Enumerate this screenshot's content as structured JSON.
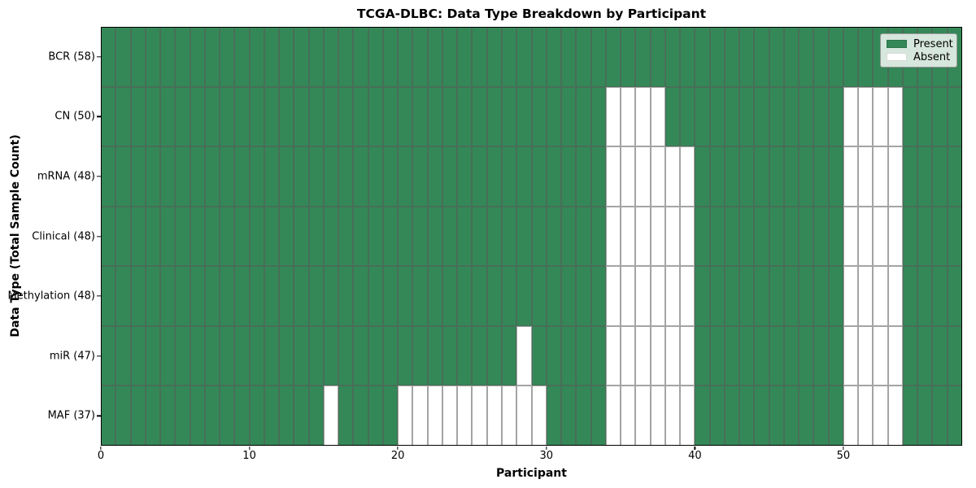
{
  "title": "TCGA-DLBC: Data Type Breakdown by Participant",
  "axes": {
    "xlabel": "Participant",
    "ylabel": "Data Type (Total Sample Count)"
  },
  "legend": {
    "items": [
      {
        "label": "Present",
        "color": "#348857"
      },
      {
        "label": "Absent",
        "color": "#ffffff"
      }
    ]
  },
  "chart_data": {
    "type": "heatmap",
    "title": "TCGA-DLBC: Data Type Breakdown by Participant",
    "xlabel": "Participant",
    "ylabel": "Data Type (Total Sample Count)",
    "n_participants": 58,
    "x_range": [
      0,
      58
    ],
    "x_ticks": [
      0,
      10,
      20,
      30,
      40,
      50
    ],
    "grid": "cell-mesh",
    "legend_position": "upper-right",
    "legend_entries": [
      "Present",
      "Absent"
    ],
    "colors": {
      "present": "#348857",
      "absent": "#ffffff",
      "cell_edge": "gray"
    },
    "rows": [
      {
        "label": "BCR (58)",
        "total_samples": 58,
        "absent_participants": []
      },
      {
        "label": "CN (50)",
        "total_samples": 50,
        "absent_participants": [
          34,
          35,
          36,
          37,
          50,
          51,
          52,
          53
        ]
      },
      {
        "label": "mRNA (48)",
        "total_samples": 48,
        "absent_participants": [
          34,
          35,
          36,
          37,
          38,
          39,
          50,
          51,
          52,
          53
        ]
      },
      {
        "label": "Clinical (48)",
        "total_samples": 48,
        "absent_participants": [
          34,
          35,
          36,
          37,
          38,
          39,
          50,
          51,
          52,
          53
        ]
      },
      {
        "label": "Methylation (48)",
        "total_samples": 48,
        "absent_participants": [
          34,
          35,
          36,
          37,
          38,
          39,
          50,
          51,
          52,
          53
        ]
      },
      {
        "label": "miR (47)",
        "total_samples": 47,
        "absent_participants": [
          28,
          34,
          35,
          36,
          37,
          38,
          39,
          50,
          51,
          52,
          53
        ]
      },
      {
        "label": "MAF (37)",
        "total_samples": 37,
        "absent_participants": [
          15,
          20,
          21,
          22,
          23,
          24,
          25,
          26,
          27,
          28,
          29,
          34,
          35,
          36,
          37,
          38,
          39,
          50,
          51,
          52,
          53
        ]
      }
    ]
  }
}
